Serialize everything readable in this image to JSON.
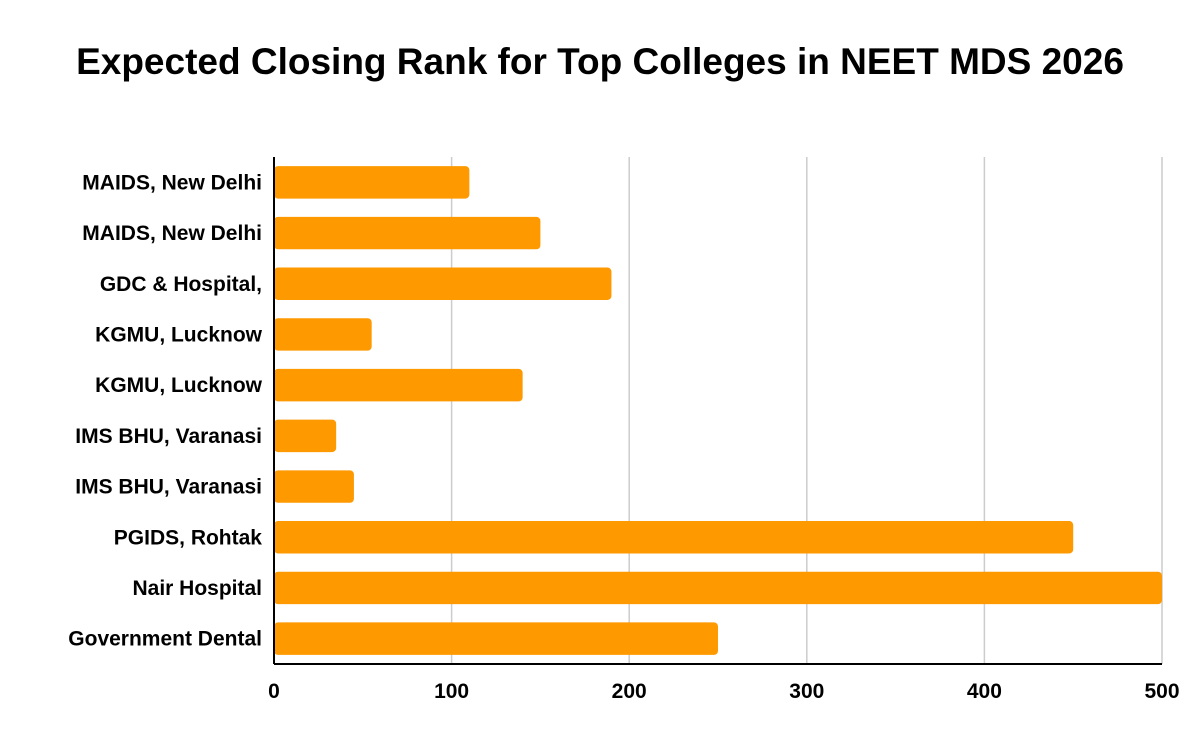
{
  "chart_data": {
    "type": "bar",
    "orientation": "horizontal",
    "title": "Expected Closing Rank for Top Colleges in NEET MDS 2026",
    "xlabel": "",
    "ylabel": "",
    "categories": [
      "MAIDS, New Delhi",
      "MAIDS, New Delhi",
      "GDC & Hospital,",
      "KGMU, Lucknow",
      "KGMU, Lucknow",
      "IMS BHU, Varanasi",
      "IMS BHU, Varanasi",
      "PGIDS, Rohtak",
      "Nair Hospital",
      "Government Dental"
    ],
    "values": [
      110,
      150,
      190,
      55,
      140,
      35,
      45,
      450,
      500,
      250
    ],
    "xlim": [
      0,
      500
    ],
    "xticks": [
      0,
      100,
      200,
      300,
      400,
      500
    ],
    "grid": true,
    "legend": "none",
    "colors": {
      "bar": "#FF9900",
      "grid": "#CCCCCC",
      "axis": "#000000",
      "text": "#000000"
    }
  }
}
